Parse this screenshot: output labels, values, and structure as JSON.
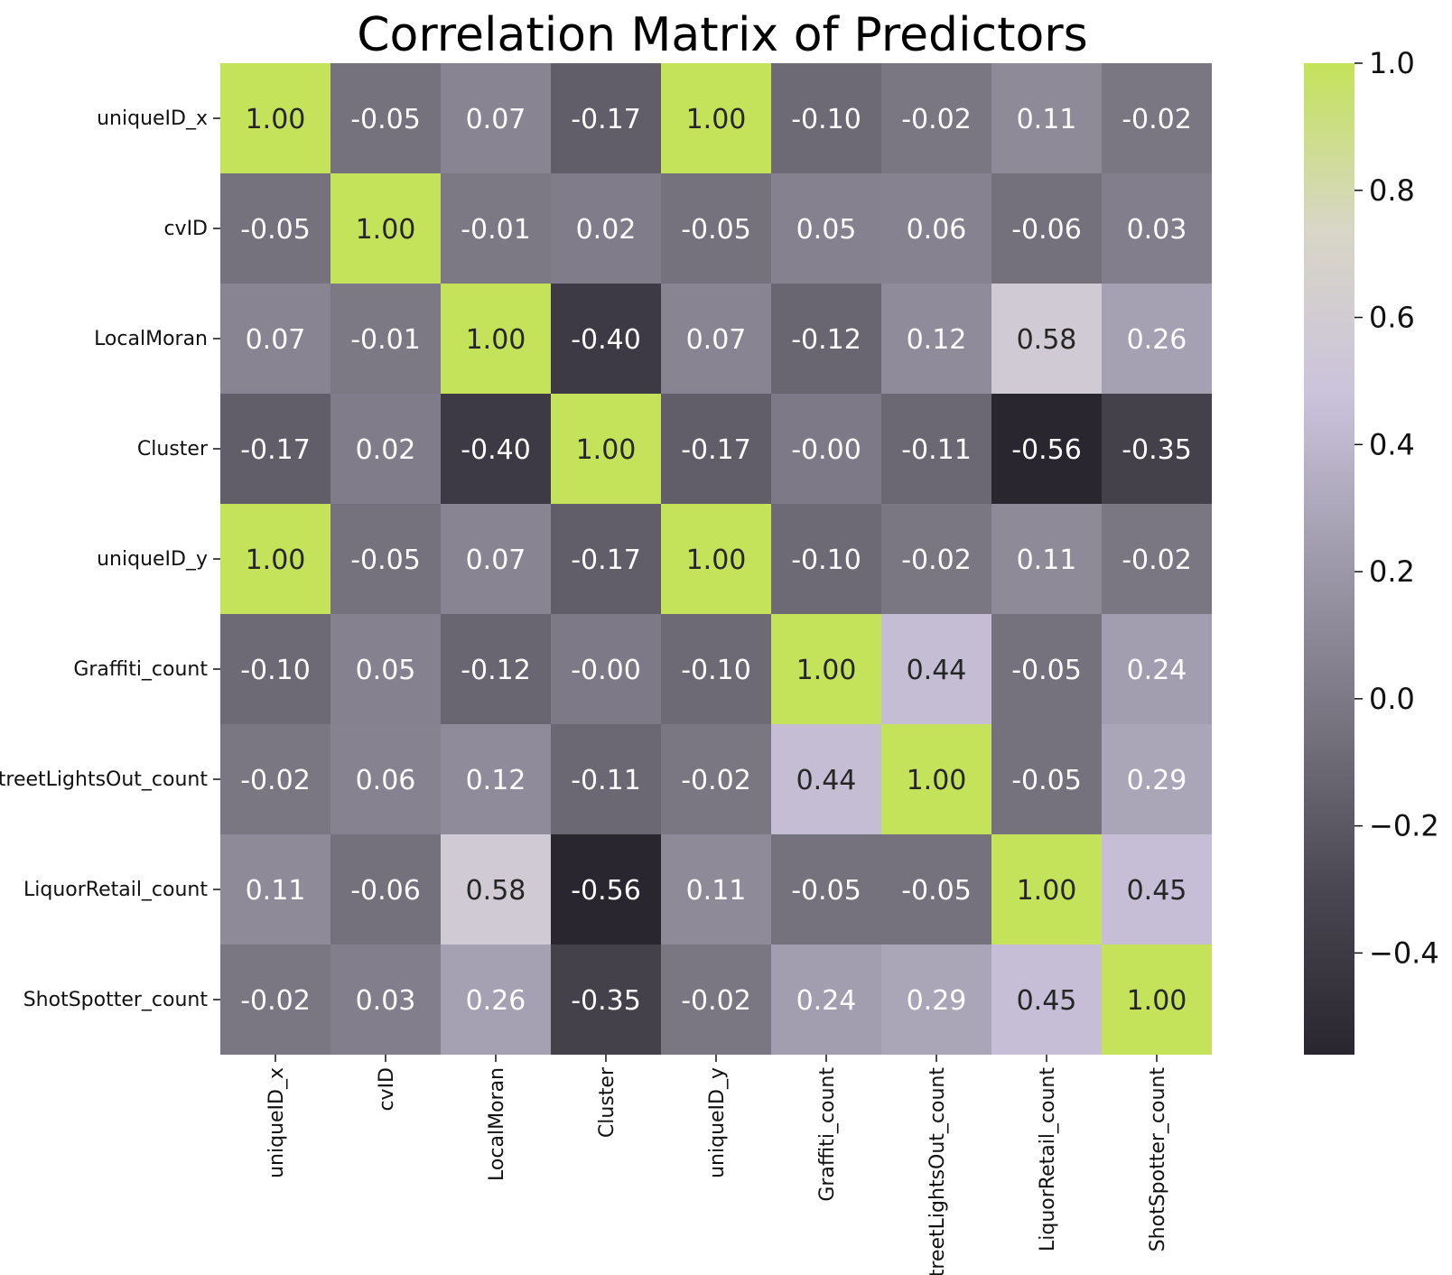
{
  "chart_data": {
    "type": "heatmap",
    "title": "Correlation Matrix of Predictors",
    "variables": [
      "uniqueID_x",
      "cvID",
      "LocalMoran",
      "Cluster",
      "uniqueID_y",
      "Graffiti_count",
      "StreetLightsOut_count",
      "LiquorRetail_count",
      "ShotSpotter_count"
    ],
    "values": [
      [
        1.0,
        -0.05,
        0.07,
        -0.17,
        1.0,
        -0.1,
        -0.02,
        0.11,
        -0.02
      ],
      [
        -0.05,
        1.0,
        -0.01,
        0.02,
        -0.05,
        0.05,
        0.06,
        -0.06,
        0.03
      ],
      [
        0.07,
        -0.01,
        1.0,
        -0.4,
        0.07,
        -0.12,
        0.12,
        0.58,
        0.26
      ],
      [
        -0.17,
        0.02,
        -0.4,
        1.0,
        -0.17,
        -0.0,
        -0.11,
        -0.56,
        -0.35
      ],
      [
        1.0,
        -0.05,
        0.07,
        -0.17,
        1.0,
        -0.1,
        -0.02,
        0.11,
        -0.02
      ],
      [
        -0.1,
        0.05,
        -0.12,
        -0.0,
        -0.1,
        1.0,
        0.44,
        -0.05,
        0.24
      ],
      [
        -0.02,
        0.06,
        0.12,
        -0.11,
        -0.02,
        0.44,
        1.0,
        -0.05,
        0.29
      ],
      [
        0.11,
        -0.06,
        0.58,
        -0.56,
        0.11,
        -0.05,
        -0.05,
        1.0,
        0.45
      ],
      [
        -0.02,
        0.03,
        0.26,
        -0.35,
        -0.02,
        0.24,
        0.29,
        0.45,
        1.0
      ]
    ],
    "annotation_format": "0.00",
    "colorbar": {
      "range": [
        -0.56,
        1.0
      ],
      "ticks": [
        1.0,
        0.8,
        0.6,
        0.4,
        0.2,
        0.0,
        -0.2,
        -0.4
      ],
      "tick_labels": [
        "1.0",
        "0.8",
        "0.6",
        "0.4",
        "0.2",
        "0.0",
        "−0.2",
        "−0.4"
      ],
      "colors": [
        "#29262f",
        "#4a4752",
        "#77737f",
        "#9f9aab",
        "#cbc3dc",
        "#d8d6c6",
        "#c4e35a"
      ],
      "position": "right"
    },
    "grid": false
  }
}
